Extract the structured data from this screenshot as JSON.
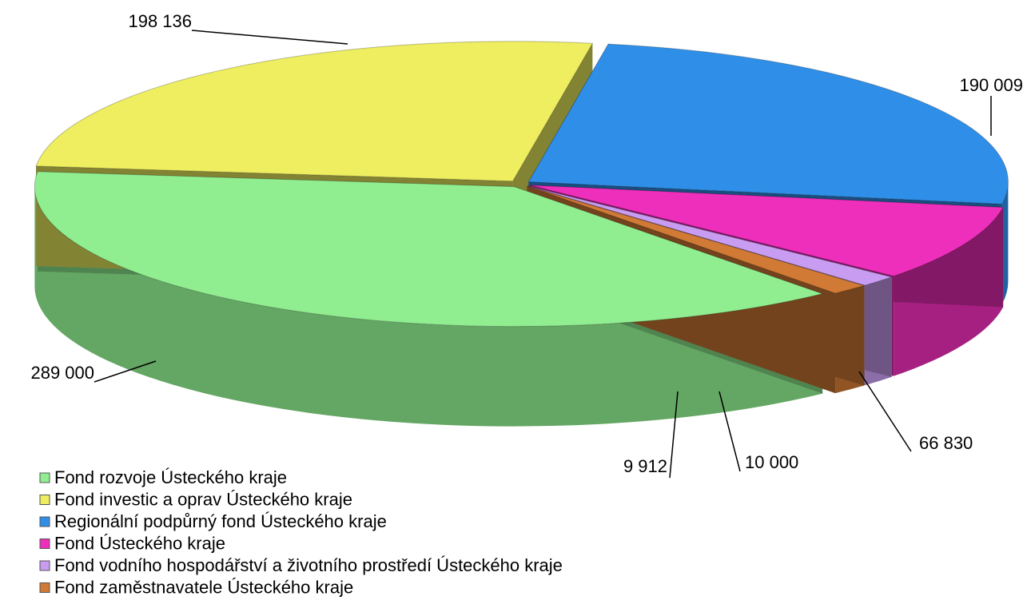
{
  "chart_data": {
    "type": "pie",
    "categories": [
      "Fond rozvoje Ústeckého kraje",
      "Fond investic a oprav Ústeckého kraje",
      "Regionální podpůrný fond Ústeckého kraje",
      "Fond Ústeckého kraje",
      "Fond vodního hospodářství a životního prostředí Ústeckého kraje",
      "Fond zaměstnavatele Ústeckého kraje"
    ],
    "values": [
      289000,
      198136,
      190009,
      66830,
      10000,
      9912
    ],
    "value_labels": [
      "289 000",
      "198 136",
      "190 009",
      "66 830",
      "10 000",
      "9 912"
    ],
    "colors": [
      "#90ee90",
      "#eeee60",
      "#2f8fe8",
      "#ee2fbb",
      "#c89cf0",
      "#d07a35"
    ],
    "legend": "bottom-left"
  }
}
